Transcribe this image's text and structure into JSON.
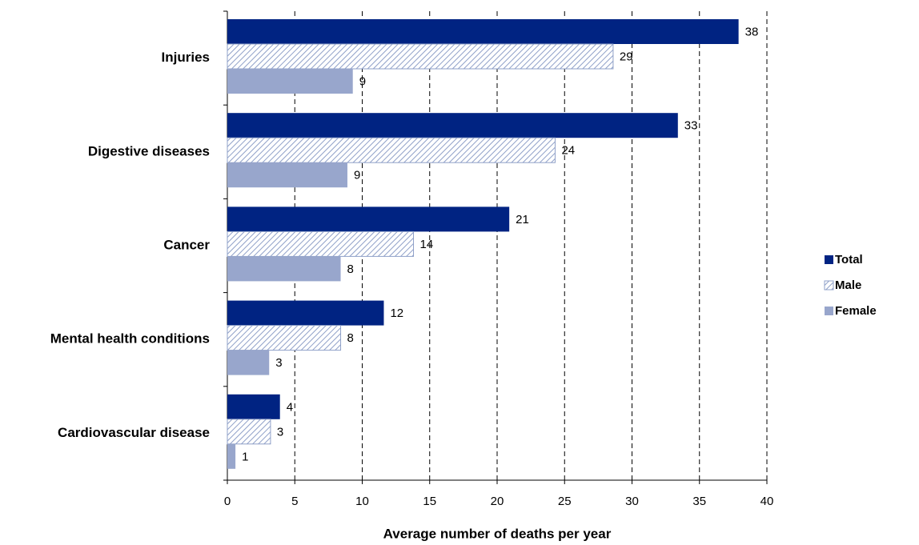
{
  "chart_data": {
    "type": "bar",
    "orientation": "horizontal",
    "x_label": "Average number of deaths per year",
    "categories": [
      "Injuries",
      "Digestive diseases",
      "Cancer",
      "Mental health conditions",
      "Cardiovascular disease"
    ],
    "series": [
      {
        "name": "Total",
        "color": "#002382",
        "values": [
          37.9,
          33.4,
          20.9,
          11.6,
          3.9
        ],
        "value_labels": [
          "38",
          "33",
          "21",
          "12",
          "4"
        ]
      },
      {
        "name": "Male",
        "color": "#8fa0c8",
        "pattern": "hatch",
        "values": [
          28.6,
          24.3,
          13.8,
          8.4,
          3.2
        ],
        "value_labels": [
          "29",
          "24",
          "14",
          "8",
          "3"
        ]
      },
      {
        "name": "Female",
        "color": "#98a6cc",
        "values": [
          9.3,
          8.9,
          8.4,
          3.1,
          0.6
        ],
        "value_labels": [
          "9",
          "9",
          "8",
          "3",
          "1"
        ]
      }
    ],
    "xlim": [
      0,
      40
    ],
    "xticks": [
      0,
      5,
      10,
      15,
      20,
      25,
      30,
      35,
      40
    ],
    "grid": true,
    "legend": "right"
  }
}
